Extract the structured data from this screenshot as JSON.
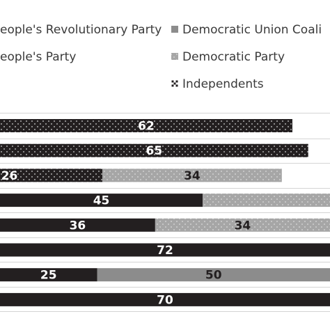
{
  "chart_data": {
    "type": "bar",
    "orientation": "horizontal",
    "stacked": true,
    "title": "",
    "xlabel": "",
    "ylabel": "",
    "categories": [
      "",
      "",
      "",
      "",
      "",
      "",
      "",
      ""
    ],
    "colors": {
      "mprp": "#231f20",
      "dem_union": "#8c8c8c",
      "peoples": "#ffffff",
      "democratic": "#a6a6a6",
      "independents": "#231f20"
    },
    "legend": [
      {
        "key": "mprp",
        "label": "eople's Revolutionary Party",
        "pattern": "solid"
      },
      {
        "key": "dem_union",
        "label": "Democratic Union Coali",
        "pattern": "solid"
      },
      {
        "key": "peoples",
        "label": "eople's Party",
        "pattern": "none"
      },
      {
        "key": "democratic",
        "label": "Democratic Party",
        "pattern": "dots"
      },
      {
        "key": "independents",
        "label": "Independents",
        "pattern": "dots"
      }
    ],
    "bars": [
      {
        "segments": [
          {
            "series": "independents",
            "value": 62,
            "label": "62"
          }
        ]
      },
      {
        "segments": [
          {
            "series": "independents",
            "value": 65,
            "label": "65"
          }
        ]
      },
      {
        "segments": [
          {
            "series": "independents",
            "value": 26,
            "label": "26"
          },
          {
            "series": "democratic",
            "value": 34,
            "label": "34"
          }
        ]
      },
      {
        "segments": [
          {
            "series": "mprp",
            "value": 45,
            "label": "45"
          },
          {
            "series": "democratic",
            "value": 31,
            "label": ""
          }
        ]
      },
      {
        "segments": [
          {
            "series": "mprp",
            "value": 36,
            "label": "36"
          },
          {
            "series": "democratic",
            "value": 34,
            "label": "34"
          }
        ]
      },
      {
        "segments": [
          {
            "series": "mprp",
            "value": 72,
            "label": "72"
          }
        ]
      },
      {
        "segments": [
          {
            "series": "mprp",
            "value": 25,
            "label": "25"
          },
          {
            "series": "dem_union",
            "value": 50,
            "label": "50"
          }
        ]
      },
      {
        "segments": [
          {
            "series": "mprp",
            "value": 70,
            "label": "70"
          }
        ]
      }
    ]
  }
}
